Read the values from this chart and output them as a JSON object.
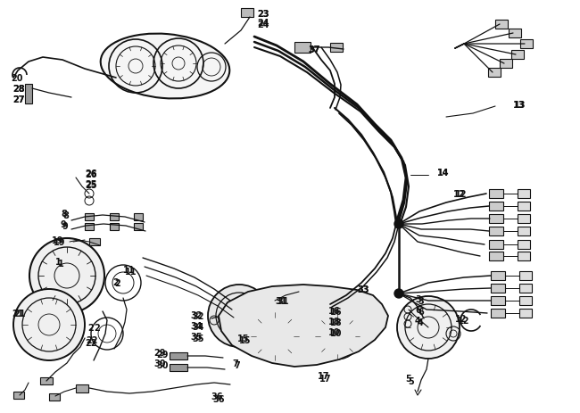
{
  "bg_color": "#ffffff",
  "fig_width": 6.5,
  "fig_height": 4.64,
  "dpi": 100,
  "lc": "#111111",
  "lc2": "#333333",
  "gray": "#888888",
  "lightgray": "#cccccc"
}
